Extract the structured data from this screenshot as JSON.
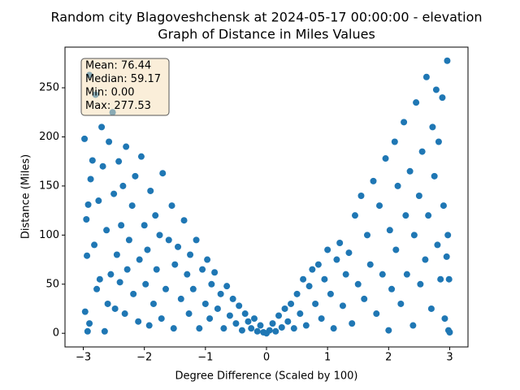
{
  "chart_data": {
    "type": "scatter",
    "title": "Random city Blagoveshchensk at 2024-05-17 00:00:00  - elevation",
    "subtitle": "Graph of Distance in Miles Values",
    "x_label": "Degree Difference (Scaled by 100)",
    "y_label": "Distance (Miles)",
    "annotations": [
      "Mean: 76.44",
      "Median: 59.17",
      "Min: 0.00",
      "Max: 277.53"
    ],
    "color": "#1f77b4",
    "xlim": [
      -3.3,
      3.3
    ],
    "ylim": [
      -13.9,
      291.4
    ],
    "xticks": [
      {
        "value": -3,
        "label": "−3"
      },
      {
        "value": -2,
        "label": "−2"
      },
      {
        "value": -1,
        "label": "−1"
      },
      0,
      1,
      2,
      3
    ],
    "yticks": [
      0,
      50,
      100,
      150,
      200,
      250
    ],
    "x": [
      -2.98,
      -2.97,
      -2.95,
      -2.94,
      -2.93,
      -2.92,
      -2.9,
      -2.9,
      -2.88,
      -2.85,
      -2.82,
      -2.8,
      -2.78,
      -2.75,
      -2.73,
      -2.7,
      -2.68,
      -2.65,
      -2.62,
      -2.6,
      -2.58,
      -2.55,
      -2.52,
      -2.5,
      -2.48,
      -2.45,
      -2.42,
      -2.4,
      -2.38,
      -2.35,
      -2.32,
      -2.3,
      -2.28,
      -2.25,
      -2.2,
      -2.18,
      -2.15,
      -2.1,
      -2.08,
      -2.05,
      -2.0,
      -1.98,
      -1.95,
      -1.92,
      -1.9,
      -1.85,
      -1.82,
      -1.8,
      -1.75,
      -1.72,
      -1.7,
      -1.65,
      -1.6,
      -1.55,
      -1.52,
      -1.5,
      -1.45,
      -1.4,
      -1.35,
      -1.3,
      -1.27,
      -1.25,
      -1.2,
      -1.15,
      -1.1,
      -1.05,
      -1.0,
      -0.97,
      -0.93,
      -0.9,
      -0.85,
      -0.8,
      -0.75,
      -0.7,
      -0.65,
      -0.6,
      -0.55,
      -0.5,
      -0.45,
      -0.4,
      -0.35,
      -0.3,
      -0.25,
      -0.2,
      -0.15,
      -0.1,
      -0.05,
      0.0,
      0.05,
      0.1,
      0.15,
      0.2,
      0.25,
      0.3,
      0.35,
      0.4,
      0.45,
      0.5,
      0.55,
      0.6,
      0.65,
      0.7,
      0.75,
      0.8,
      0.85,
      0.9,
      0.95,
      1.0,
      1.05,
      1.1,
      1.15,
      1.2,
      1.25,
      1.3,
      1.35,
      1.4,
      1.45,
      1.5,
      1.55,
      1.6,
      1.65,
      1.7,
      1.75,
      1.8,
      1.85,
      1.9,
      1.95,
      2.0,
      2.02,
      2.05,
      2.1,
      2.12,
      2.15,
      2.2,
      2.25,
      2.28,
      2.3,
      2.35,
      2.4,
      2.42,
      2.45,
      2.5,
      2.52,
      2.55,
      2.6,
      2.62,
      2.65,
      2.7,
      2.72,
      2.75,
      2.78,
      2.8,
      2.82,
      2.85,
      2.88,
      2.9,
      2.92,
      2.95,
      2.96,
      2.97,
      2.98,
      2.99,
      3.0
    ],
    "y": [
      198,
      22,
      116,
      79,
      2,
      131,
      263,
      10,
      157,
      176,
      90,
      243,
      45,
      135,
      55,
      210,
      170,
      2,
      105,
      30,
      195,
      60,
      225,
      142,
      25,
      80,
      175,
      52,
      110,
      150,
      20,
      190,
      65,
      95,
      130,
      40,
      160,
      12,
      75,
      180,
      110,
      50,
      85,
      8,
      145,
      30,
      120,
      65,
      100,
      15,
      163,
      45,
      95,
      130,
      5,
      70,
      88,
      35,
      115,
      60,
      20,
      80,
      45,
      95,
      5,
      65,
      30,
      75,
      15,
      50,
      62,
      25,
      40,
      5,
      48,
      18,
      35,
      10,
      28,
      3,
      20,
      12,
      5,
      15,
      2,
      8,
      1,
      0.0,
      3,
      10,
      2,
      18,
      6,
      25,
      12,
      30,
      5,
      40,
      20,
      55,
      8,
      48,
      65,
      30,
      70,
      15,
      55,
      85,
      40,
      5,
      75,
      92,
      28,
      60,
      82,
      10,
      120,
      50,
      140,
      35,
      100,
      70,
      155,
      20,
      130,
      60,
      178,
      3,
      105,
      45,
      195,
      85,
      150,
      30,
      215,
      120,
      60,
      165,
      8,
      100,
      235,
      140,
      50,
      185,
      75,
      261,
      120,
      25,
      210,
      160,
      248,
      90,
      195,
      55,
      240,
      130,
      15,
      78,
      277.53,
      100,
      3,
      55,
      1
    ]
  }
}
